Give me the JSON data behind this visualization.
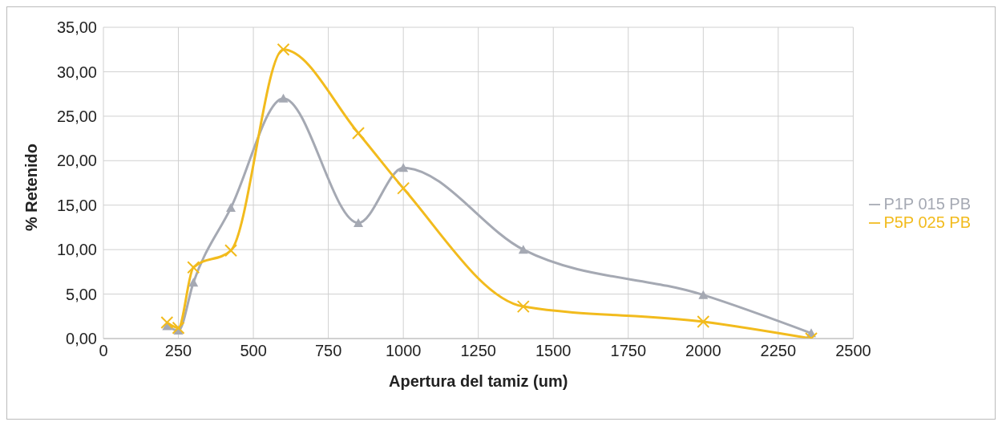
{
  "chart_data": {
    "type": "line",
    "xlabel": "Apertura del tamiz (um)",
    "ylabel": "% Retenido",
    "x": [
      212,
      250,
      300,
      425,
      600,
      850,
      1000,
      1400,
      2000,
      2360
    ],
    "series": [
      {
        "name": "P1P 015 PB",
        "color": "#a5a9b3",
        "marker": "triangle",
        "values": [
          1.4,
          0.9,
          6.3,
          14.7,
          27.0,
          13.0,
          19.2,
          10.0,
          4.9,
          0.6
        ]
      },
      {
        "name": "P5P 025 PB",
        "color": "#f2bb1d",
        "marker": "cross",
        "values": [
          1.8,
          1.2,
          8.0,
          9.9,
          32.5,
          23.1,
          16.9,
          3.6,
          1.9,
          0.0
        ]
      }
    ],
    "xlim": [
      0,
      2500
    ],
    "xticks": [
      0,
      250,
      500,
      750,
      1000,
      1250,
      1500,
      1750,
      2000,
      2250,
      2500
    ],
    "ylim": [
      0,
      35
    ],
    "yticks": [
      {
        "value": 0,
        "label": "0,00"
      },
      {
        "value": 5,
        "label": "5,00"
      },
      {
        "value": 10,
        "label": "10,00"
      },
      {
        "value": 15,
        "label": "15,00"
      },
      {
        "value": 20,
        "label": "20,00"
      },
      {
        "value": 25,
        "label": "25,00"
      },
      {
        "value": 30,
        "label": "30,00"
      },
      {
        "value": 35,
        "label": "35,00"
      }
    ],
    "grid": true,
    "legend": "right",
    "line_style": "solid"
  }
}
